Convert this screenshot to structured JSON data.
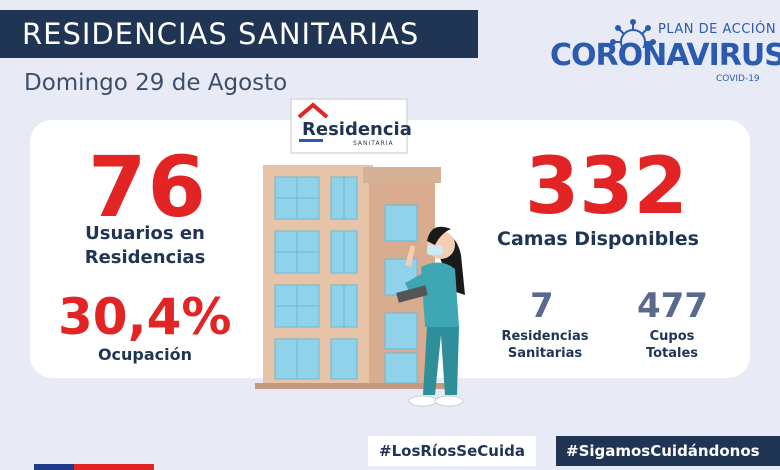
{
  "header": {
    "title": "RESIDENCIAS SANITARIAS",
    "date": "Domingo 29 de Agosto"
  },
  "logo": {
    "plan": "PLAN DE ACCIÓN",
    "name": "CORONAVIRUS",
    "sub": "COVID-19",
    "icon": "virus-icon"
  },
  "sign": {
    "main": "Residencia",
    "sub": "SANITARIA"
  },
  "stats": {
    "usuarios": {
      "value": "76",
      "label_line1": "Usuarios en",
      "label_line2": "Residencias"
    },
    "ocupacion": {
      "value": "30,4%",
      "label": "Ocupación"
    },
    "camas": {
      "value": "332",
      "label": "Camas Disponibles"
    },
    "residencias": {
      "value": "7",
      "label_line1": "Residencias",
      "label_line2": "Sanitarias"
    },
    "cupos": {
      "value": "477",
      "label_line1": "Cupos",
      "label_line2": "Totales"
    }
  },
  "hashtags": {
    "first": "#LosRíosSeCuida",
    "second": "#SigamosCuidándonos"
  },
  "colors": {
    "navy": "#1f3553",
    "red": "#e32424",
    "blue": "#2a5bb0",
    "background": "#e8ebf6"
  }
}
